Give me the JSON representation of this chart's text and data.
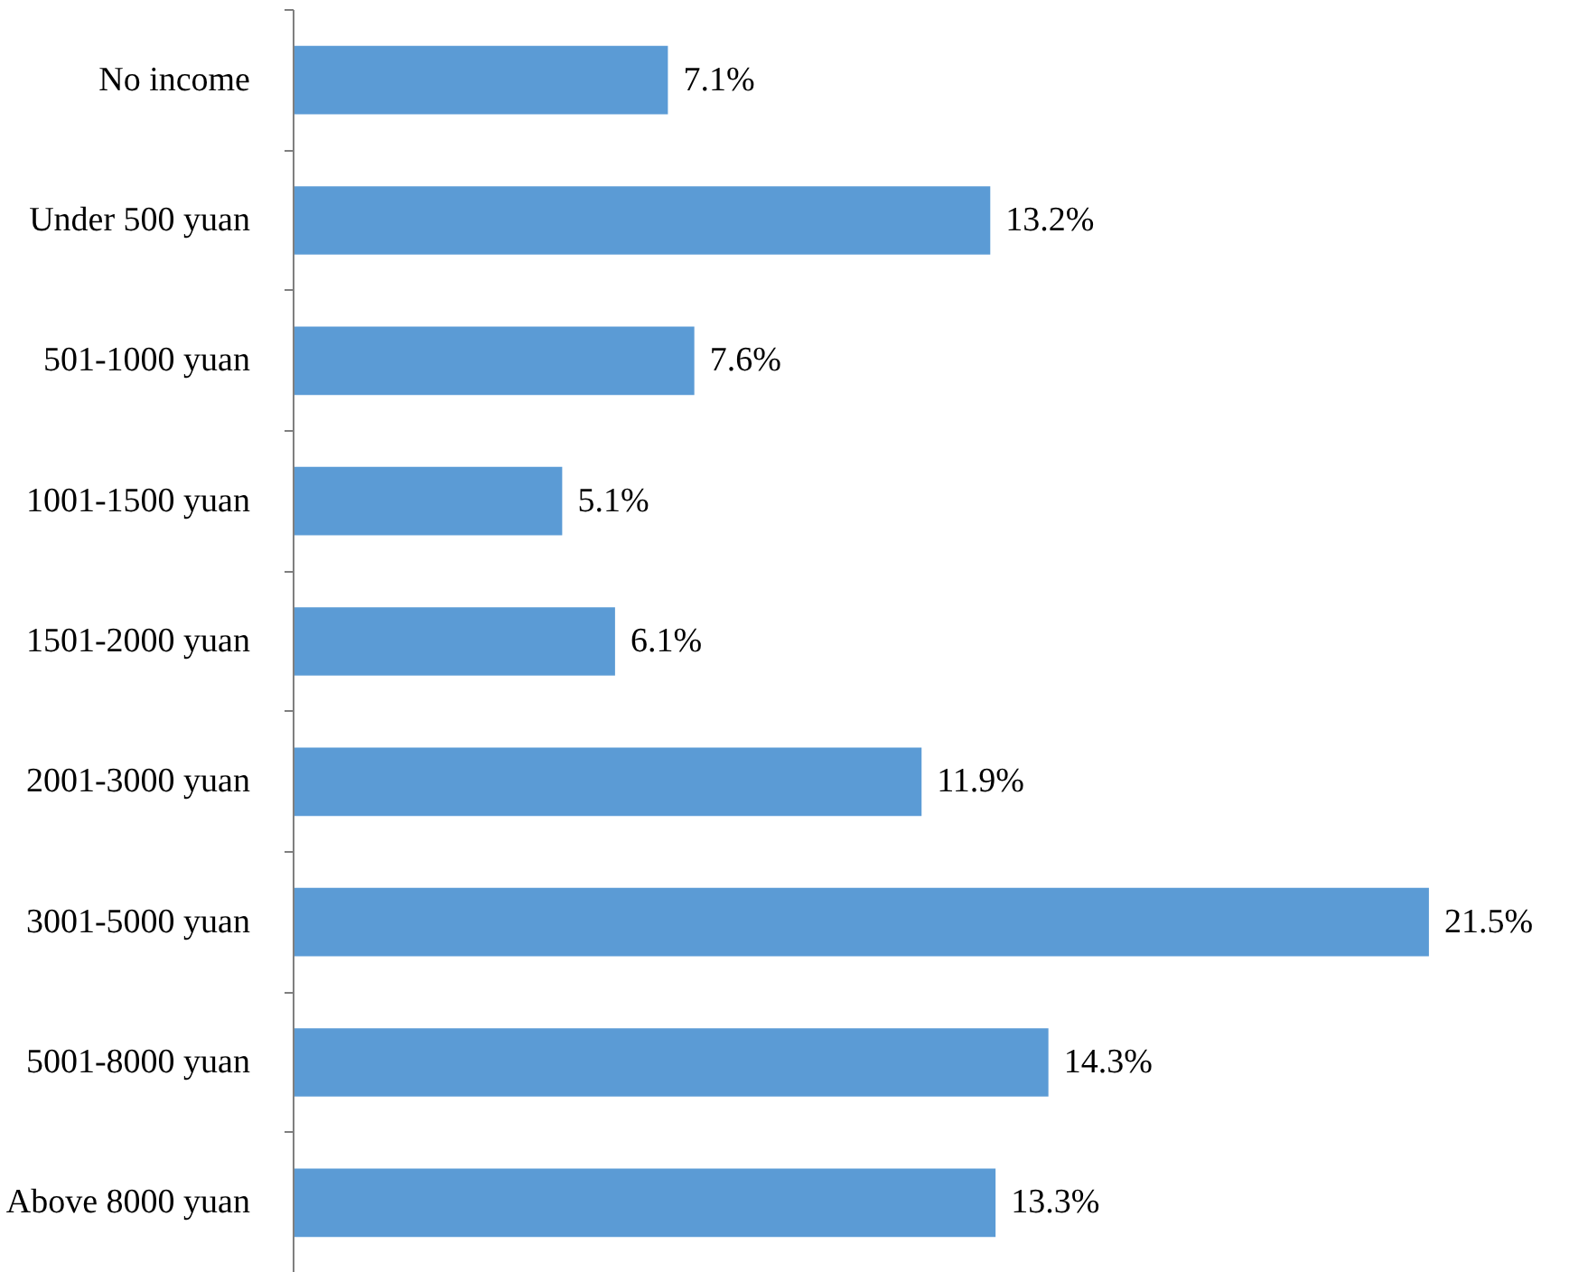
{
  "chart_data": {
    "type": "bar",
    "orientation": "horizontal",
    "categories": [
      "No income",
      "Under 500 yuan",
      "501-1000 yuan",
      "1001-1500 yuan",
      "1501-2000 yuan",
      "2001-3000 yuan",
      "3001-5000 yuan",
      "5001-8000 yuan",
      "Above 8000 yuan"
    ],
    "values": [
      7.1,
      13.2,
      7.6,
      5.1,
      6.1,
      11.9,
      21.5,
      14.3,
      13.3
    ],
    "value_labels": [
      "7.1%",
      "13.2%",
      "7.6%",
      "5.1%",
      "6.1%",
      "11.9%",
      "21.5%",
      "14.3%",
      "13.3%"
    ],
    "color": "#5b9bd5"
  }
}
